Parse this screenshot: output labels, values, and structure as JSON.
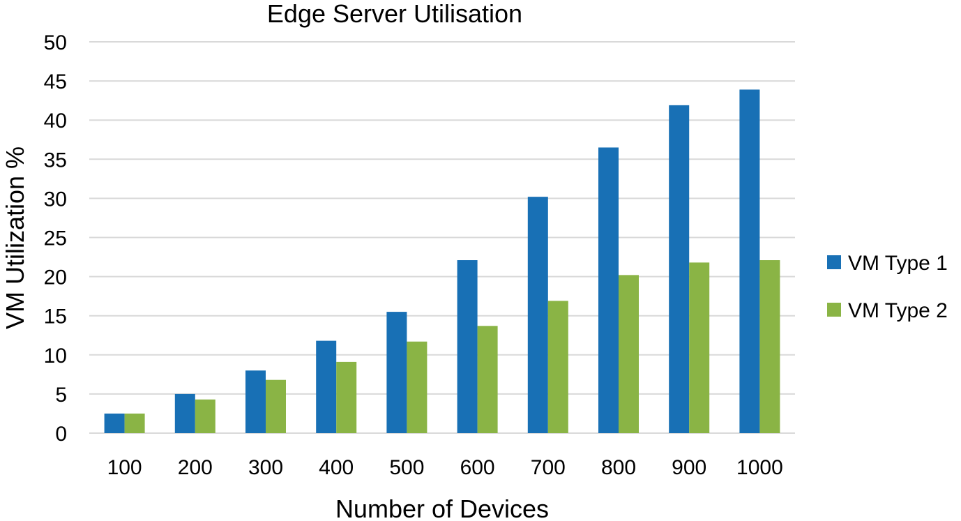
{
  "chart_data": {
    "type": "bar",
    "title": "Edge Server Utilisation",
    "xlabel": "Number of Devices",
    "ylabel": "VM Utilization %",
    "categories": [
      "100",
      "200",
      "300",
      "400",
      "500",
      "600",
      "700",
      "800",
      "900",
      "1000"
    ],
    "series": [
      {
        "name": "VM Type 1",
        "color": "#1870B5",
        "values": [
          2.5,
          5.0,
          8.0,
          11.8,
          15.5,
          22.1,
          30.2,
          36.5,
          41.9,
          43.9
        ]
      },
      {
        "name": "VM Type 2",
        "color": "#8AB445",
        "values": [
          2.5,
          4.3,
          6.8,
          9.1,
          11.7,
          13.7,
          16.9,
          20.2,
          21.8,
          22.1
        ]
      }
    ],
    "ylim": [
      0,
      50
    ],
    "yticks": [
      0,
      5,
      10,
      15,
      20,
      25,
      30,
      35,
      40,
      45,
      50
    ],
    "grid": true,
    "gridColor": "#D9D9D9",
    "legend_position": "right"
  }
}
